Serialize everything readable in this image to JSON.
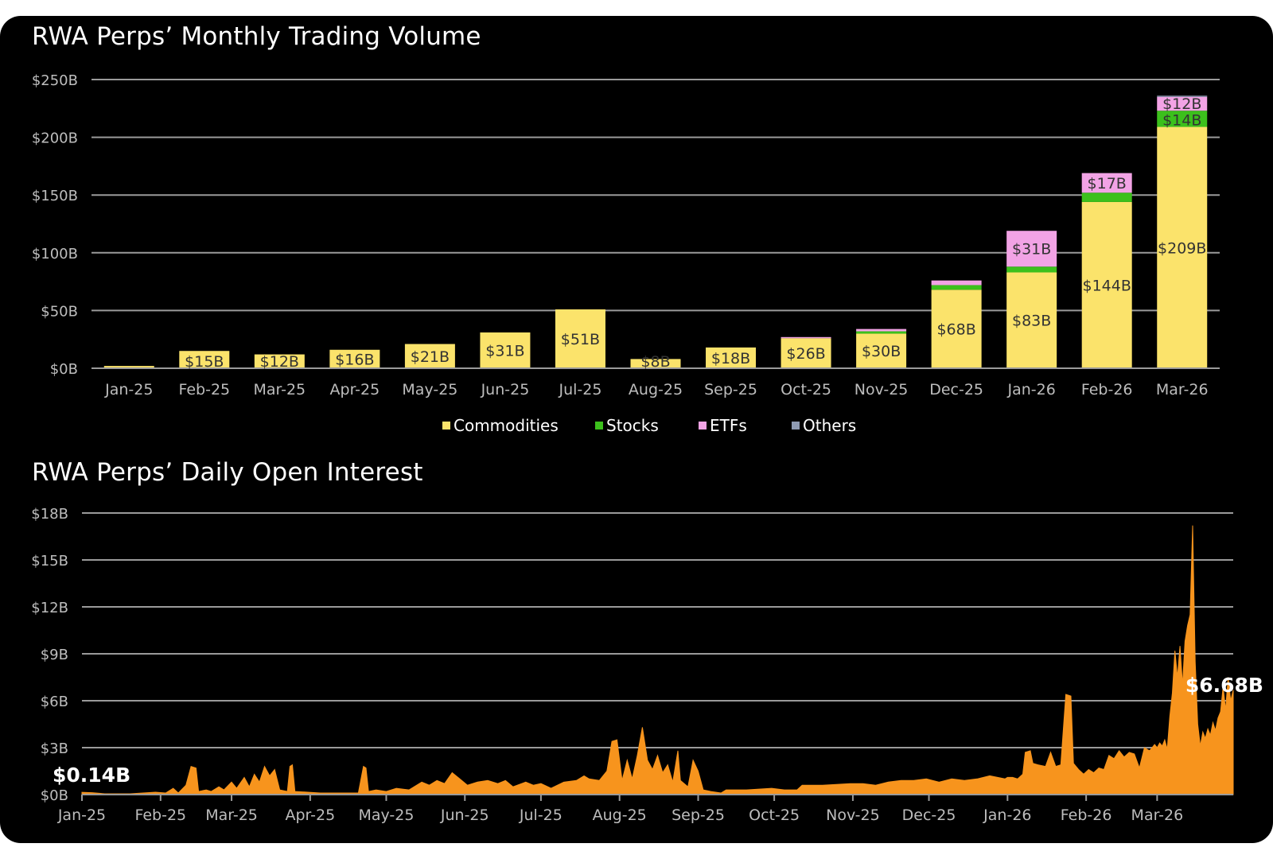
{
  "colors": {
    "background": "#000000",
    "text": "#ffffff",
    "axis_text": "#bdbdbd",
    "gridline": "#9a9a9a",
    "commodities": "#fbe36b",
    "stocks": "#3cc01c",
    "etfs": "#f2a3e5",
    "others": "#8f9bb3",
    "open_interest": "#f7941d",
    "bar_label": "#333333"
  },
  "chart_data": [
    {
      "type": "bar",
      "stacked": true,
      "title": "RWA Perps’ Monthly Trading Volume",
      "categories": [
        "Jan-25",
        "Feb-25",
        "Mar-25",
        "Apr-25",
        "May-25",
        "Jun-25",
        "Jul-25",
        "Aug-25",
        "Sep-25",
        "Oct-25",
        "Nov-25",
        "Dec-25",
        "Jan-26",
        "Feb-26",
        "Mar-26"
      ],
      "series": [
        {
          "name": "Commodities",
          "values": [
            2,
            15,
            12,
            16,
            21,
            31,
            51,
            8,
            18,
            26,
            30,
            68,
            83,
            144,
            209
          ]
        },
        {
          "name": "Stocks",
          "values": [
            0,
            0,
            0,
            0,
            0,
            0,
            0,
            0,
            0,
            0,
            2,
            4,
            5,
            8,
            14
          ]
        },
        {
          "name": "ETFs",
          "values": [
            0,
            0,
            0,
            0,
            0,
            0,
            0,
            0,
            0,
            1,
            2,
            4,
            31,
            17,
            12
          ]
        },
        {
          "name": "Others",
          "values": [
            0,
            0,
            0,
            0,
            0,
            0,
            0,
            0,
            0,
            0,
            0,
            0,
            0,
            0,
            1
          ]
        }
      ],
      "data_labels": [
        {
          "category": "Feb-25",
          "series": "Commodities",
          "text": "$15B"
        },
        {
          "category": "Mar-25",
          "series": "Commodities",
          "text": "$12B"
        },
        {
          "category": "Apr-25",
          "series": "Commodities",
          "text": "$16B"
        },
        {
          "category": "May-25",
          "series": "Commodities",
          "text": "$21B"
        },
        {
          "category": "Jun-25",
          "series": "Commodities",
          "text": "$31B"
        },
        {
          "category": "Jul-25",
          "series": "Commodities",
          "text": "$51B"
        },
        {
          "category": "Aug-25",
          "series": "Commodities",
          "text": "$8B"
        },
        {
          "category": "Sep-25",
          "series": "Commodities",
          "text": "$18B"
        },
        {
          "category": "Oct-25",
          "series": "Commodities",
          "text": "$26B"
        },
        {
          "category": "Nov-25",
          "series": "Commodities",
          "text": "$30B"
        },
        {
          "category": "Dec-25",
          "series": "Commodities",
          "text": "$68B"
        },
        {
          "category": "Jan-26",
          "series": "Commodities",
          "text": "$83B"
        },
        {
          "category": "Jan-26",
          "series": "ETFs",
          "text": "$31B"
        },
        {
          "category": "Feb-26",
          "series": "Commodities",
          "text": "$144B"
        },
        {
          "category": "Feb-26",
          "series": "ETFs",
          "text": "$17B"
        },
        {
          "category": "Mar-26",
          "series": "Commodities",
          "text": "$209B"
        },
        {
          "category": "Mar-26",
          "series": "Stocks",
          "text": "$14B"
        },
        {
          "category": "Mar-26",
          "series": "ETFs",
          "text": "$12B"
        }
      ],
      "y_ticks": [
        0,
        50,
        100,
        150,
        200,
        250
      ],
      "y_tick_labels": [
        "$0B",
        "$50B",
        "$100B",
        "$150B",
        "$200B",
        "$250B"
      ],
      "ylim": [
        0,
        250
      ],
      "legend": [
        "Commodities",
        "Stocks",
        "ETFs",
        "Others"
      ],
      "legend_position": "bottom-center",
      "grid": true
    },
    {
      "type": "area",
      "title": "RWA Perps’ Daily Open Interest",
      "x_tick_labels": [
        "Jan-25",
        "Feb-25",
        "Mar-25",
        "Apr-25",
        "May-25",
        "Jun-25",
        "Jul-25",
        "Aug-25",
        "Sep-25",
        "Oct-25",
        "Nov-25",
        "Dec-25",
        "Jan-26",
        "Feb-26",
        "Mar-26"
      ],
      "x_ticks": [
        "2025-01-01",
        "2025-02-01",
        "2025-03-01",
        "2025-04-01",
        "2025-05-01",
        "2025-06-01",
        "2025-07-01",
        "2025-08-01",
        "2025-09-01",
        "2025-10-01",
        "2025-11-01",
        "2025-12-01",
        "2026-01-01",
        "2026-02-01",
        "2026-03-01"
      ],
      "xlim": [
        "2025-01-01",
        "2026-03-31"
      ],
      "y_ticks": [
        0,
        3,
        6,
        9,
        12,
        15,
        18
      ],
      "y_tick_labels": [
        "$0B",
        "$3B",
        "$6B",
        "$9B",
        "$12B",
        "$15B",
        "$18B"
      ],
      "ylim": [
        0,
        18
      ],
      "grid": true,
      "annotations": [
        {
          "date": "2025-01-01",
          "value": 0.14,
          "text": "$0.14B"
        },
        {
          "date": "2026-03-31",
          "value": 6.68,
          "text": "$6.68B"
        }
      ],
      "points": [
        [
          "2025-01-01",
          0.14
        ],
        [
          "2025-01-05",
          0.12
        ],
        [
          "2025-01-10",
          0.05
        ],
        [
          "2025-01-15",
          0.05
        ],
        [
          "2025-01-20",
          0.05
        ],
        [
          "2025-01-25",
          0.1
        ],
        [
          "2025-01-30",
          0.15
        ],
        [
          "2025-02-03",
          0.1
        ],
        [
          "2025-02-06",
          0.4
        ],
        [
          "2025-02-08",
          0.1
        ],
        [
          "2025-02-11",
          0.6
        ],
        [
          "2025-02-13",
          1.8
        ],
        [
          "2025-02-15",
          1.7
        ],
        [
          "2025-02-16",
          0.2
        ],
        [
          "2025-02-19",
          0.3
        ],
        [
          "2025-02-21",
          0.2
        ],
        [
          "2025-02-24",
          0.5
        ],
        [
          "2025-02-26",
          0.3
        ],
        [
          "2025-03-01",
          0.8
        ],
        [
          "2025-03-03",
          0.4
        ],
        [
          "2025-03-06",
          1.1
        ],
        [
          "2025-03-08",
          0.5
        ],
        [
          "2025-03-10",
          1.3
        ],
        [
          "2025-03-12",
          0.8
        ],
        [
          "2025-03-14",
          1.8
        ],
        [
          "2025-03-16",
          1.2
        ],
        [
          "2025-03-18",
          1.6
        ],
        [
          "2025-03-20",
          0.3
        ],
        [
          "2025-03-23",
          0.2
        ],
        [
          "2025-03-24",
          1.8
        ],
        [
          "2025-03-25",
          1.9
        ],
        [
          "2025-03-26",
          0.2
        ],
        [
          "2025-03-31",
          0.15
        ],
        [
          "2025-04-05",
          0.1
        ],
        [
          "2025-04-10",
          0.1
        ],
        [
          "2025-04-15",
          0.1
        ],
        [
          "2025-04-20",
          0.1
        ],
        [
          "2025-04-22",
          1.8
        ],
        [
          "2025-04-23",
          1.7
        ],
        [
          "2025-04-24",
          0.2
        ],
        [
          "2025-04-27",
          0.3
        ],
        [
          "2025-05-01",
          0.2
        ],
        [
          "2025-05-05",
          0.4
        ],
        [
          "2025-05-10",
          0.3
        ],
        [
          "2025-05-15",
          0.8
        ],
        [
          "2025-05-18",
          0.6
        ],
        [
          "2025-05-21",
          0.9
        ],
        [
          "2025-05-24",
          0.7
        ],
        [
          "2025-05-27",
          1.4
        ],
        [
          "2025-05-30",
          1.0
        ],
        [
          "2025-06-02",
          0.6
        ],
        [
          "2025-06-06",
          0.8
        ],
        [
          "2025-06-10",
          0.9
        ],
        [
          "2025-06-14",
          0.7
        ],
        [
          "2025-06-17",
          0.9
        ],
        [
          "2025-06-20",
          0.5
        ],
        [
          "2025-06-25",
          0.8
        ],
        [
          "2025-06-28",
          0.6
        ],
        [
          "2025-07-01",
          0.7
        ],
        [
          "2025-07-05",
          0.4
        ],
        [
          "2025-07-10",
          0.8
        ],
        [
          "2025-07-15",
          0.9
        ],
        [
          "2025-07-18",
          1.2
        ],
        [
          "2025-07-20",
          1.0
        ],
        [
          "2025-07-24",
          0.9
        ],
        [
          "2025-07-27",
          1.5
        ],
        [
          "2025-07-29",
          3.4
        ],
        [
          "2025-07-31",
          3.5
        ],
        [
          "2025-08-02",
          0.9
        ],
        [
          "2025-08-04",
          2.2
        ],
        [
          "2025-08-06",
          1.0
        ],
        [
          "2025-08-08",
          2.5
        ],
        [
          "2025-08-10",
          4.3
        ],
        [
          "2025-08-12",
          2.2
        ],
        [
          "2025-08-14",
          1.6
        ],
        [
          "2025-08-16",
          2.5
        ],
        [
          "2025-08-18",
          1.4
        ],
        [
          "2025-08-20",
          1.9
        ],
        [
          "2025-08-22",
          0.8
        ],
        [
          "2025-08-24",
          2.8
        ],
        [
          "2025-08-25",
          0.9
        ],
        [
          "2025-08-28",
          0.5
        ],
        [
          "2025-08-30",
          2.2
        ],
        [
          "2025-09-01",
          1.5
        ],
        [
          "2025-09-03",
          0.3
        ],
        [
          "2025-09-06",
          0.2
        ],
        [
          "2025-09-10",
          0.1
        ],
        [
          "2025-09-12",
          0.3
        ],
        [
          "2025-09-20",
          0.3
        ],
        [
          "2025-09-30",
          0.4
        ],
        [
          "2025-10-05",
          0.3
        ],
        [
          "2025-10-10",
          0.3
        ],
        [
          "2025-10-12",
          0.6
        ],
        [
          "2025-10-20",
          0.6
        ],
        [
          "2025-10-31",
          0.7
        ],
        [
          "2025-11-05",
          0.7
        ],
        [
          "2025-11-10",
          0.6
        ],
        [
          "2025-11-15",
          0.8
        ],
        [
          "2025-11-20",
          0.9
        ],
        [
          "2025-11-25",
          0.9
        ],
        [
          "2025-11-30",
          1.0
        ],
        [
          "2025-12-05",
          0.8
        ],
        [
          "2025-12-10",
          1.0
        ],
        [
          "2025-12-15",
          0.9
        ],
        [
          "2025-12-20",
          1.0
        ],
        [
          "2025-12-25",
          1.2
        ],
        [
          "2025-12-31",
          1.0
        ],
        [
          "2026-01-01",
          1.1
        ],
        [
          "2026-01-03",
          1.1
        ],
        [
          "2026-01-05",
          1.0
        ],
        [
          "2026-01-07",
          1.3
        ],
        [
          "2026-01-08",
          2.7
        ],
        [
          "2026-01-10",
          2.8
        ],
        [
          "2026-01-11",
          2.0
        ],
        [
          "2026-01-13",
          1.9
        ],
        [
          "2026-01-16",
          1.8
        ],
        [
          "2026-01-18",
          2.7
        ],
        [
          "2026-01-20",
          1.8
        ],
        [
          "2026-01-22",
          1.9
        ],
        [
          "2026-01-24",
          6.4
        ],
        [
          "2026-01-26",
          6.3
        ],
        [
          "2026-01-27",
          2.0
        ],
        [
          "2026-01-29",
          1.6
        ],
        [
          "2026-01-31",
          1.3
        ],
        [
          "2026-02-02",
          1.6
        ],
        [
          "2026-02-04",
          1.4
        ],
        [
          "2026-02-06",
          1.7
        ],
        [
          "2026-02-08",
          1.6
        ],
        [
          "2026-02-10",
          2.5
        ],
        [
          "2026-02-12",
          2.3
        ],
        [
          "2026-02-14",
          2.8
        ],
        [
          "2026-02-16",
          2.4
        ],
        [
          "2026-02-18",
          2.7
        ],
        [
          "2026-02-20",
          2.6
        ],
        [
          "2026-02-22",
          1.7
        ],
        [
          "2026-02-24",
          3.0
        ],
        [
          "2026-02-26",
          2.8
        ],
        [
          "2026-02-28",
          3.2
        ],
        [
          "2026-03-01",
          3.0
        ],
        [
          "2026-03-02",
          3.3
        ],
        [
          "2026-03-03",
          3.1
        ],
        [
          "2026-03-04",
          3.5
        ],
        [
          "2026-03-05",
          2.9
        ],
        [
          "2026-03-06",
          5.0
        ],
        [
          "2026-03-07",
          6.5
        ],
        [
          "2026-03-08",
          9.2
        ],
        [
          "2026-03-09",
          7.5
        ],
        [
          "2026-03-10",
          9.5
        ],
        [
          "2026-03-11",
          7.0
        ],
        [
          "2026-03-12",
          9.8
        ],
        [
          "2026-03-13",
          10.8
        ],
        [
          "2026-03-14",
          11.5
        ],
        [
          "2026-03-15",
          17.2
        ],
        [
          "2026-03-16",
          8.5
        ],
        [
          "2026-03-17",
          4.5
        ],
        [
          "2026-03-18",
          3.1
        ],
        [
          "2026-03-19",
          4.0
        ],
        [
          "2026-03-20",
          3.6
        ],
        [
          "2026-03-21",
          4.2
        ],
        [
          "2026-03-22",
          3.8
        ],
        [
          "2026-03-23",
          4.6
        ],
        [
          "2026-03-24",
          4.1
        ],
        [
          "2026-03-25",
          4.9
        ],
        [
          "2026-03-26",
          5.3
        ],
        [
          "2026-03-27",
          6.9
        ],
        [
          "2026-03-28",
          5.4
        ],
        [
          "2026-03-29",
          7.5
        ],
        [
          "2026-03-30",
          6.0
        ],
        [
          "2026-03-31",
          6.68
        ]
      ]
    }
  ]
}
